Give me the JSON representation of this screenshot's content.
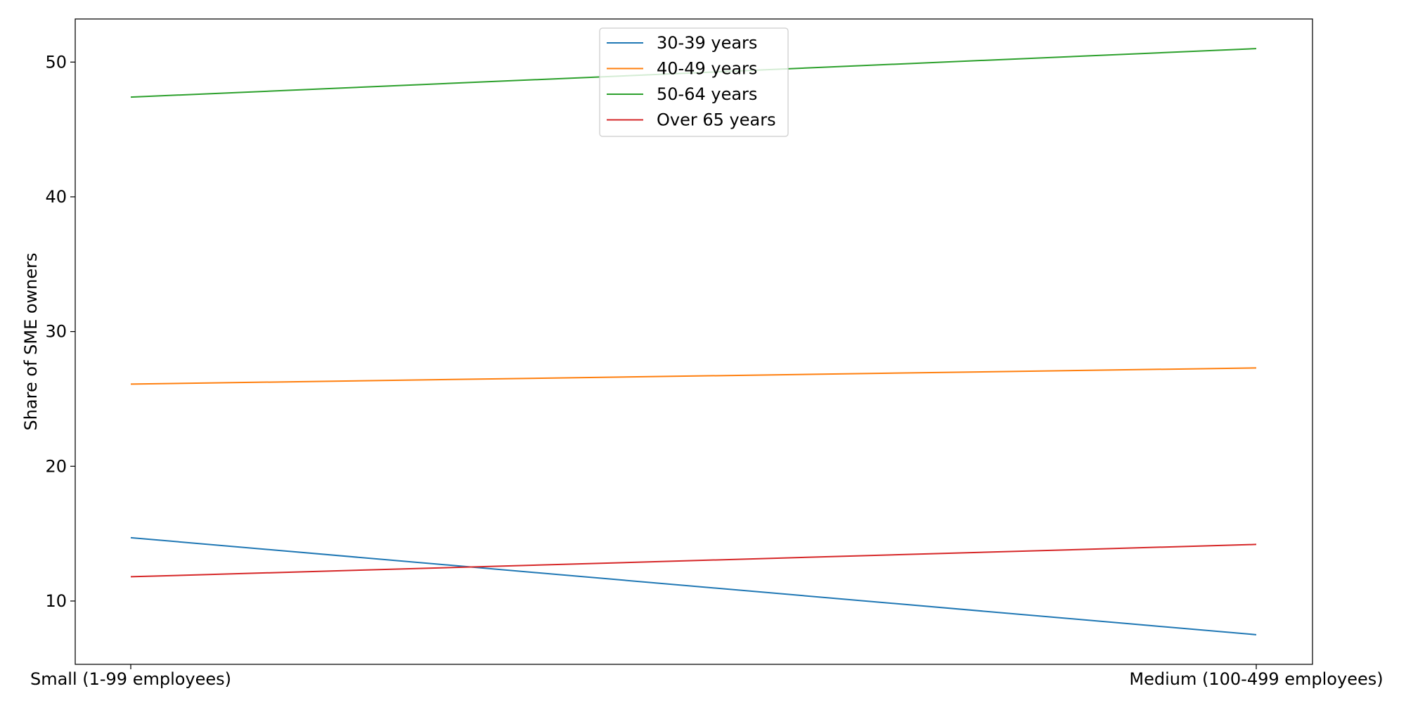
{
  "chart_data": {
    "type": "line",
    "title": "",
    "xlabel": "",
    "ylabel": "Share of SME owners",
    "categories": [
      "Small (1-99 employees)",
      "Medium (100-499 employees)"
    ],
    "ylim": [
      5.3,
      53.2
    ],
    "yticks": [
      10,
      20,
      30,
      40,
      50
    ],
    "grid": false,
    "legend_position": "top-center",
    "series": [
      {
        "name": "30-39 years",
        "color": "#1f77b4",
        "values": [
          14.7,
          7.5
        ]
      },
      {
        "name": "40-49 years",
        "color": "#ff7f0e",
        "values": [
          26.1,
          27.3
        ]
      },
      {
        "name": "50-64 years",
        "color": "#2ca02c",
        "values": [
          47.4,
          51.0
        ]
      },
      {
        "name": "Over 65 years",
        "color": "#d62728",
        "values": [
          11.8,
          14.2
        ]
      }
    ]
  }
}
